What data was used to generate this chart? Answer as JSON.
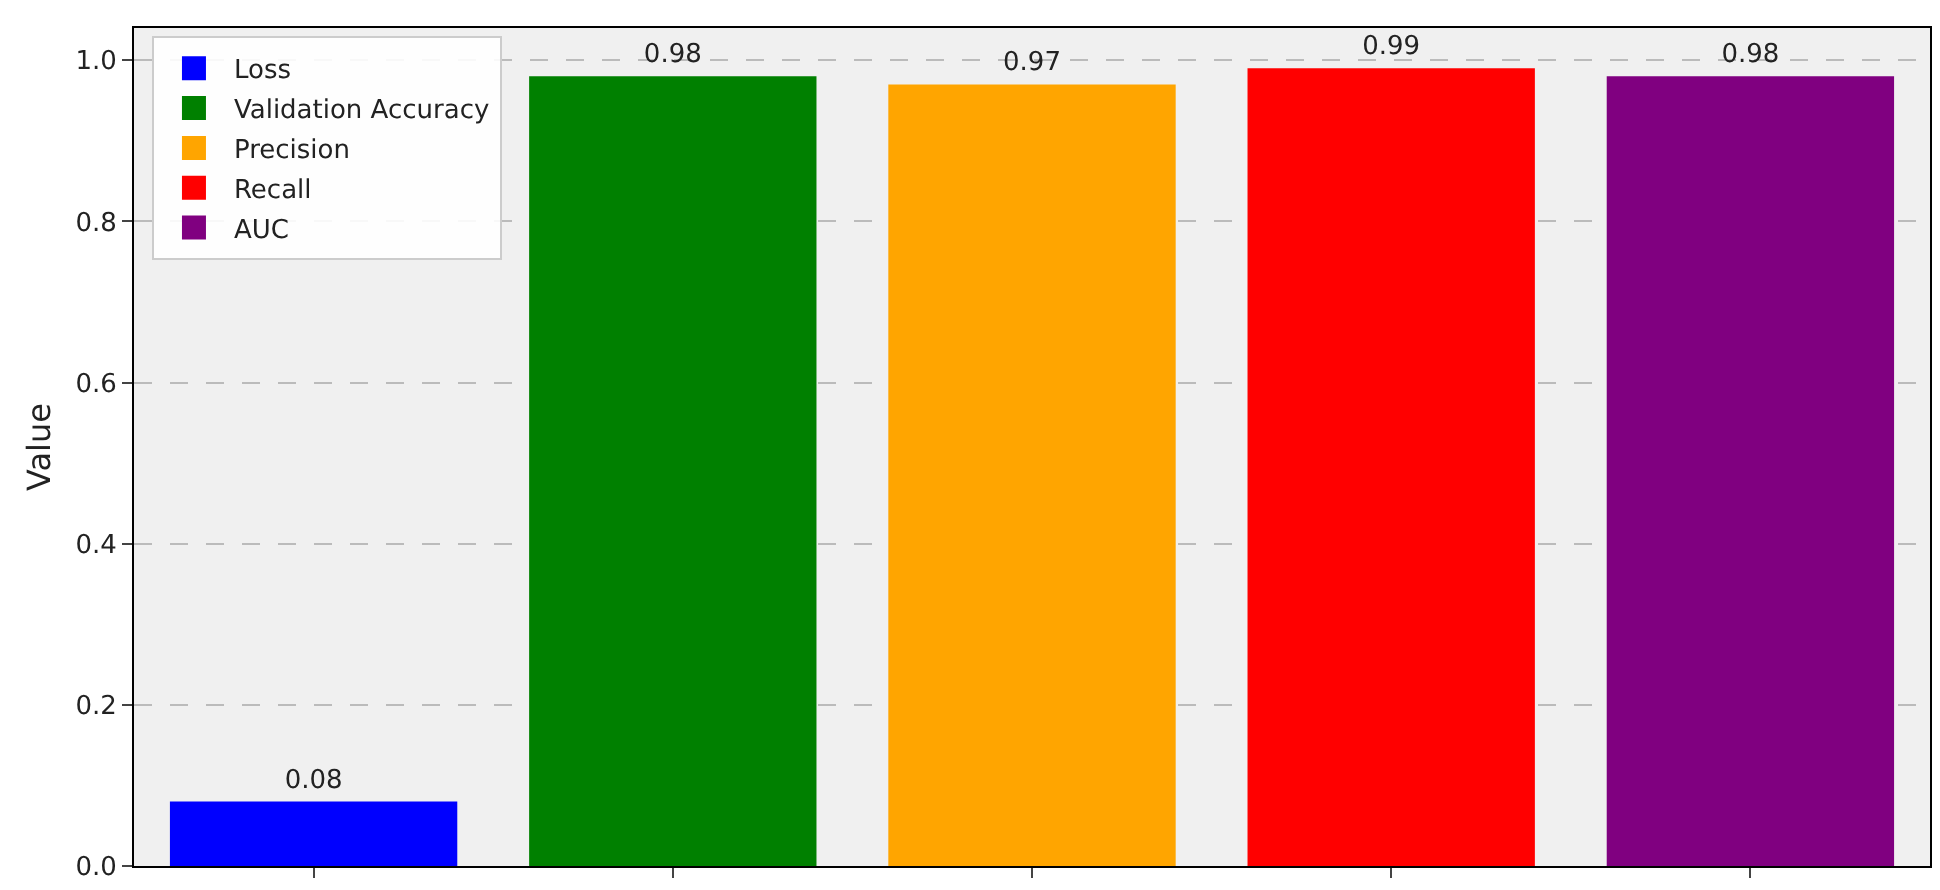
{
  "chart_data": {
    "type": "bar",
    "ylabel": "Value",
    "categories": [
      null,
      null,
      null,
      null,
      null
    ],
    "series": [
      {
        "name": "Loss",
        "color": "#0000ff",
        "values": [
          0.08,
          null,
          null,
          null,
          null
        ]
      },
      {
        "name": "Validation Accuracy",
        "color": "#008000",
        "values": [
          null,
          0.98,
          null,
          null,
          null
        ]
      },
      {
        "name": "Precision",
        "color": "#ffa500",
        "values": [
          null,
          null,
          0.97,
          null,
          null
        ]
      },
      {
        "name": "Recall",
        "color": "#ff0000",
        "values": [
          null,
          null,
          null,
          0.99,
          null
        ]
      },
      {
        "name": "AUC",
        "color": "#800080",
        "values": [
          null,
          null,
          null,
          null,
          0.98
        ]
      }
    ],
    "ylim": [
      0,
      1.04
    ],
    "yticks": [
      {
        "value": 0,
        "label": "0.0"
      },
      {
        "value": 0.2,
        "label": "0.2"
      },
      {
        "value": 0.4,
        "label": "0.4"
      },
      {
        "value": 0.6,
        "label": "0.6"
      },
      {
        "value": 0.8,
        "label": "0.8"
      },
      {
        "value": 1,
        "label": "1.0"
      }
    ],
    "grid": "y",
    "legend": "top left",
    "data_labels": true,
    "tick_labels": "y"
  }
}
